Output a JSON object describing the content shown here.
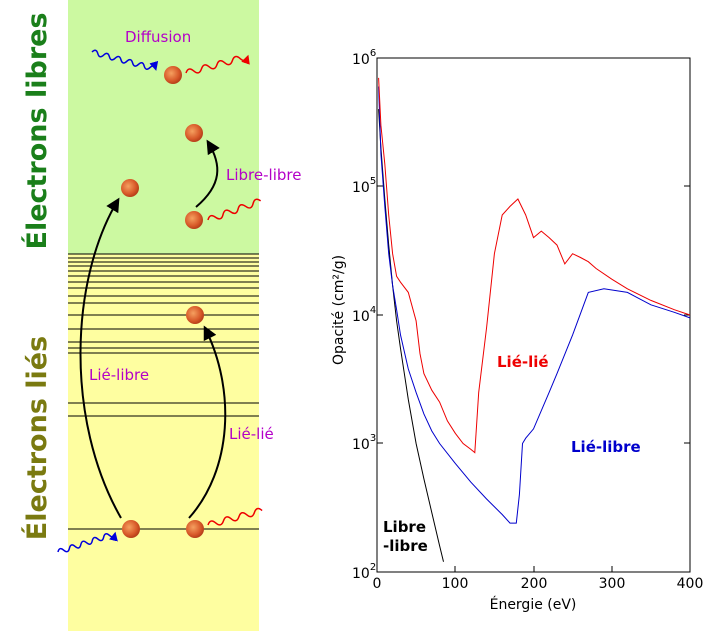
{
  "diagram": {
    "band_free_label": "Électrons libres",
    "band_bound_label": "Électrons liés",
    "processes": {
      "scattering": "Diffusion",
      "free_free": "Libre-libre",
      "bound_free": "Lié-libre",
      "bound_bound": "Lié-lié"
    },
    "colors": {
      "free_zone": "#ccf9a1",
      "bound_zone": "#fefea0",
      "free_label": "#1a7f1a",
      "bound_label": "#7a7a10",
      "process_text": "#b400c8",
      "incoming_photon": "#0000dd",
      "outgoing_photon": "#ee0000",
      "electron": "#d85a2a"
    }
  },
  "chart_data": {
    "type": "line",
    "xlabel": "Énergie (eV)",
    "ylabel": "Opacité (cm²/g)",
    "xlim": [
      0,
      400
    ],
    "ylim": [
      100,
      1000000
    ],
    "yscale": "log",
    "x_ticks": [
      "0",
      "100",
      "200",
      "300",
      "400"
    ],
    "y_ticks": [
      {
        "base": "10",
        "exp": "2"
      },
      {
        "base": "10",
        "exp": "3"
      },
      {
        "base": "10",
        "exp": "4"
      },
      {
        "base": "10",
        "exp": "5"
      },
      {
        "base": "10",
        "exp": "6"
      }
    ],
    "annotations": {
      "bound_bound": "Lié-lié",
      "bound_free": "Lié-libre",
      "free_free_line1": "Libre",
      "free_free_line2": "-libre"
    },
    "series": [
      {
        "name": "Libre-libre",
        "color": "#000000",
        "x": [
          2,
          5,
          10,
          15,
          20,
          25,
          30,
          40,
          50,
          60,
          70,
          80,
          85
        ],
        "y": [
          400000,
          200000,
          80000,
          35000,
          17000,
          9000,
          5500,
          2200,
          1000,
          530,
          290,
          160,
          120
        ]
      },
      {
        "name": "Lié-libre",
        "color": "#0000cc",
        "x": [
          2,
          5,
          10,
          15,
          20,
          25,
          30,
          40,
          50,
          60,
          70,
          80,
          100,
          120,
          140,
          160,
          170,
          178,
          182,
          186,
          190,
          200,
          220,
          230,
          250,
          270,
          290,
          320,
          350,
          380,
          400
        ],
        "y": [
          600000,
          180000,
          70000,
          30000,
          17000,
          11000,
          7000,
          3800,
          2500,
          1700,
          1250,
          1000,
          700,
          500,
          370,
          280,
          240,
          240,
          400,
          1000,
          1100,
          1300,
          2500,
          3500,
          7000,
          15000,
          16000,
          15000,
          12000,
          10500,
          9500
        ]
      },
      {
        "name": "Lié-lié",
        "color": "#ee0000",
        "x": [
          2,
          5,
          10,
          15,
          20,
          25,
          30,
          40,
          50,
          55,
          60,
          70,
          80,
          90,
          100,
          110,
          120,
          125,
          130,
          140,
          150,
          160,
          170,
          180,
          190,
          200,
          210,
          220,
          230,
          240,
          250,
          260,
          270,
          280,
          300,
          320,
          350,
          380,
          400
        ],
        "y": [
          700000,
          300000,
          150000,
          60000,
          30000,
          20000,
          18000,
          15000,
          9000,
          5000,
          3500,
          2600,
          2100,
          1500,
          1200,
          1000,
          900,
          850,
          2500,
          8000,
          30000,
          60000,
          70000,
          80000,
          60000,
          40000,
          45000,
          40000,
          35000,
          25000,
          30000,
          28000,
          26000,
          23000,
          19000,
          16000,
          13000,
          11000,
          10000
        ]
      }
    ]
  }
}
